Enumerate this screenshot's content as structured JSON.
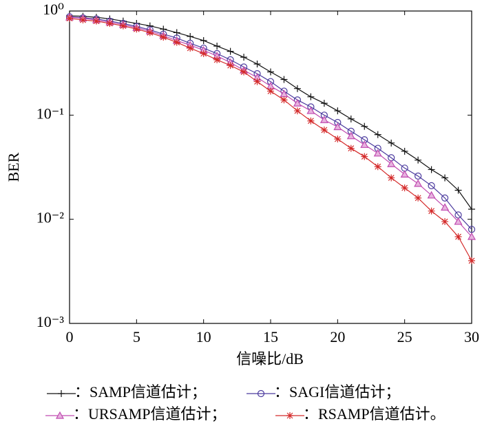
{
  "chart_data": {
    "type": "line",
    "x_label": "信噪比/dB",
    "y_label": "BER",
    "log_y": true,
    "x": [
      0,
      1,
      2,
      3,
      4,
      5,
      6,
      7,
      8,
      9,
      10,
      11,
      12,
      13,
      14,
      15,
      16,
      17,
      18,
      19,
      20,
      21,
      22,
      23,
      24,
      25,
      26,
      27,
      28,
      29,
      30
    ],
    "xlim": [
      0,
      30
    ],
    "xticks": [
      0,
      5,
      10,
      15,
      20,
      25,
      30
    ],
    "ylim": [
      0.001,
      1
    ],
    "yticks": [
      {
        "value": 0.001,
        "label": "10⁻³"
      },
      {
        "value": 0.01,
        "label": "10⁻²"
      },
      {
        "value": 0.1,
        "label": "10⁻¹"
      },
      {
        "value": 1,
        "label": "10⁰"
      }
    ],
    "series": [
      {
        "name": "：SAMP信道估计；",
        "color": "#111111",
        "marker": "plus",
        "values": [
          0.9,
          0.89,
          0.87,
          0.84,
          0.8,
          0.76,
          0.72,
          0.67,
          0.62,
          0.57,
          0.52,
          0.46,
          0.41,
          0.36,
          0.31,
          0.26,
          0.22,
          0.18,
          0.15,
          0.13,
          0.11,
          0.092,
          0.078,
          0.065,
          0.054,
          0.045,
          0.037,
          0.03,
          0.025,
          0.019,
          0.0125
        ]
      },
      {
        "name": "：SAGI信道估计；",
        "color": "#4b3a9e",
        "marker": "circle",
        "values": [
          0.88,
          0.86,
          0.84,
          0.8,
          0.76,
          0.71,
          0.66,
          0.6,
          0.55,
          0.49,
          0.44,
          0.39,
          0.34,
          0.29,
          0.25,
          0.21,
          0.17,
          0.14,
          0.12,
          0.1,
          0.085,
          0.07,
          0.058,
          0.048,
          0.039,
          0.031,
          0.026,
          0.021,
          0.016,
          0.011,
          0.008
        ]
      },
      {
        "name": "：URSAMP信道估计；",
        "color": "#c04bb0",
        "marker": "triangle",
        "values": [
          0.87,
          0.85,
          0.82,
          0.78,
          0.74,
          0.69,
          0.64,
          0.58,
          0.52,
          0.47,
          0.42,
          0.37,
          0.32,
          0.27,
          0.23,
          0.19,
          0.16,
          0.13,
          0.11,
          0.09,
          0.077,
          0.063,
          0.052,
          0.043,
          0.034,
          0.027,
          0.022,
          0.017,
          0.013,
          0.0095,
          0.0068
        ]
      },
      {
        "name": "：RSAMP信道估计。",
        "color": "#d42a2a",
        "marker": "star",
        "values": [
          0.85,
          0.82,
          0.8,
          0.76,
          0.72,
          0.67,
          0.62,
          0.56,
          0.5,
          0.44,
          0.39,
          0.34,
          0.3,
          0.26,
          0.21,
          0.17,
          0.14,
          0.11,
          0.088,
          0.072,
          0.059,
          0.048,
          0.04,
          0.032,
          0.025,
          0.02,
          0.016,
          0.012,
          0.0095,
          0.0068,
          0.004
        ]
      }
    ]
  }
}
